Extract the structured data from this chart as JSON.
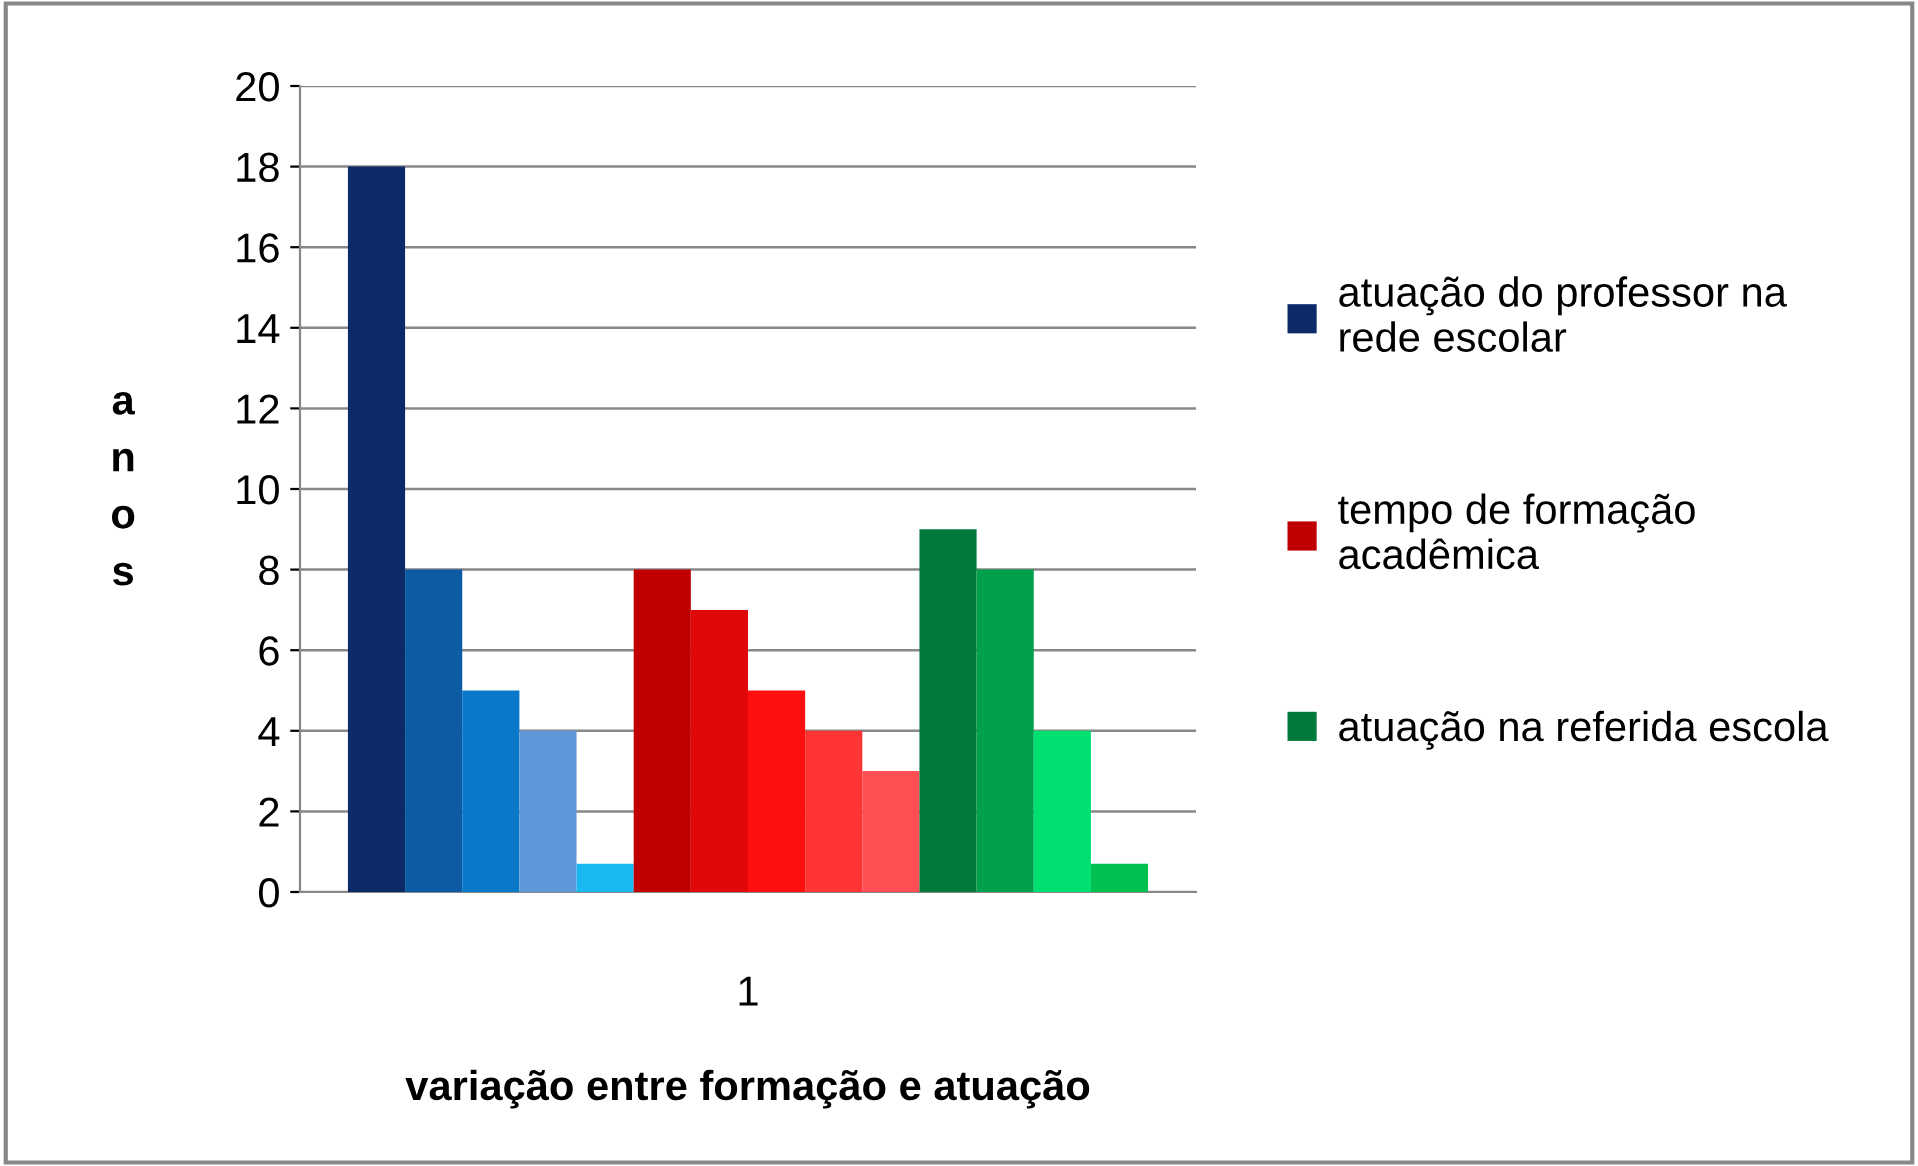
{
  "chart_data": {
    "type": "bar",
    "xlabel": "variação entre formação e atuação",
    "ylabel": "anos",
    "categories": [
      "1"
    ],
    "series": [
      {
        "name": "atuação do professor na\nrede escolar",
        "color": "#0d2a68",
        "values": [
          18
        ]
      },
      {
        "color": "#0d5ca3",
        "values": [
          8
        ]
      },
      {
        "color": "#0a78c8",
        "values": [
          5
        ]
      },
      {
        "color": "#5f97d8",
        "values": [
          4
        ]
      },
      {
        "color": "#1ab8f0",
        "values": [
          0.7
        ]
      },
      {
        "name": "tempo de formação\nacadêmica",
        "color": "#c00000",
        "values": [
          8
        ]
      },
      {
        "color": "#e00808",
        "values": [
          7
        ]
      },
      {
        "color": "#ff0f0f",
        "values": [
          5
        ]
      },
      {
        "color": "#ff3434",
        "values": [
          4
        ]
      },
      {
        "color": "#ff4f55",
        "values": [
          3
        ]
      },
      {
        "name": "atuação na referida escola",
        "color": "#007a3a",
        "values": [
          9
        ]
      },
      {
        "color": "#00a04d",
        "values": [
          8
        ]
      },
      {
        "color": "#00e070",
        "values": [
          4
        ]
      },
      {
        "color": "#00c050",
        "values": [
          0.7
        ]
      }
    ],
    "ylim": [
      0,
      20
    ],
    "yticks": [
      0,
      2,
      4,
      6,
      8,
      10,
      12,
      14,
      16,
      18,
      20
    ],
    "grid": "y",
    "legend": "right"
  }
}
